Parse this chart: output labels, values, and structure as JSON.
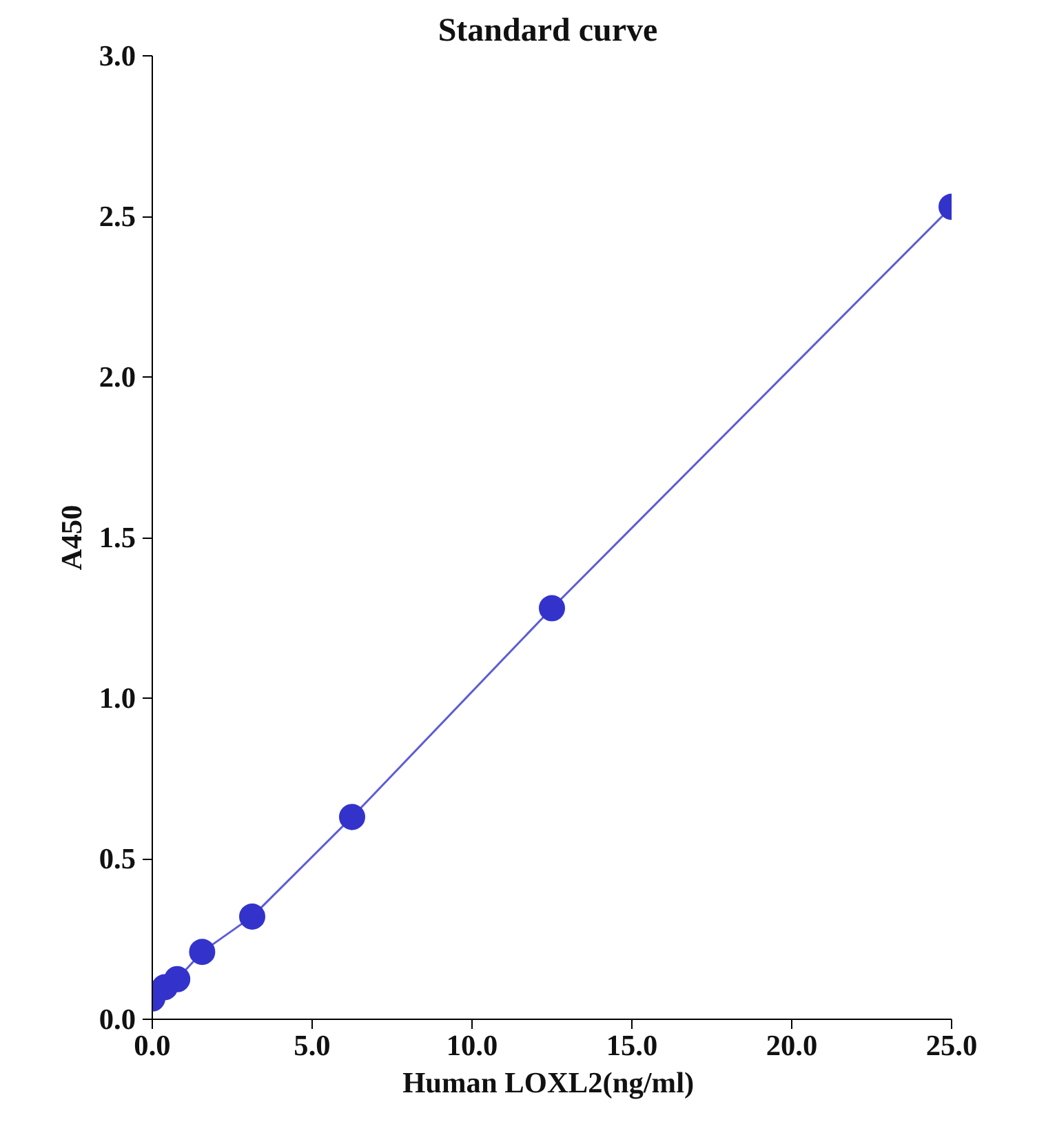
{
  "chart_data": {
    "type": "line",
    "title": "Standard  curve",
    "xlabel": "Human  LOXL2(ng/ml)",
    "ylabel": "A450",
    "x": [
      0,
      0.39,
      0.78,
      1.56,
      3.125,
      6.25,
      12.5,
      25
    ],
    "series": [
      {
        "color": "#3333cc",
        "values": [
          0.065,
          0.1,
          0.125,
          0.21,
          0.32,
          0.63,
          1.28,
          2.53
        ]
      }
    ],
    "xlim": [
      0,
      25
    ],
    "ylim": [
      0,
      3
    ],
    "xticks": [
      {
        "value": 0,
        "label": "0.0"
      },
      {
        "value": 5,
        "label": "5.0"
      },
      {
        "value": 10,
        "label": "10.0"
      },
      {
        "value": 15,
        "label": "15.0"
      },
      {
        "value": 20,
        "label": "20.0"
      },
      {
        "value": 25,
        "label": "25.0"
      }
    ],
    "yticks": [
      {
        "value": 0,
        "label": "0.0"
      },
      {
        "value": 0.5,
        "label": "0.5"
      },
      {
        "value": 1,
        "label": "1.0"
      },
      {
        "value": 1.5,
        "label": "1.5"
      },
      {
        "value": 2,
        "label": "2.0"
      },
      {
        "value": 2.5,
        "label": "2.5"
      },
      {
        "value": 3,
        "label": "3.0"
      }
    ],
    "marker": "circle",
    "line_style": "solid",
    "grid": false
  }
}
